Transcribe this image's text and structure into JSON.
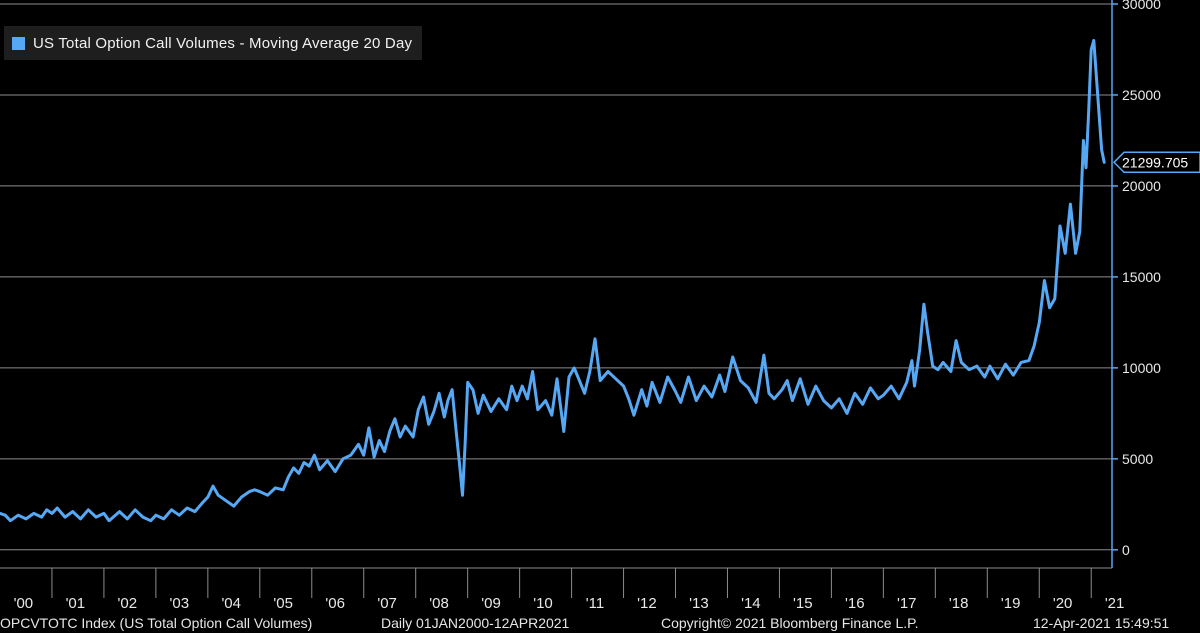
{
  "chart_data": {
    "type": "line",
    "series_label": "US Total Option Call Volumes - Moving Average 20 Day",
    "series_color": "#56a8f5",
    "last_value_label": "21299.705",
    "y_ticks": [
      "0",
      "5000",
      "10000",
      "15000",
      "20000",
      "25000",
      "30000"
    ],
    "ylim": [
      -1000,
      30000
    ],
    "x_tick_labels": [
      "'00",
      "'01",
      "'02",
      "'03",
      "'04",
      "'05",
      "'06",
      "'07",
      "'08",
      "'09",
      "'10",
      "'11",
      "'12",
      "'13",
      "'14",
      "'15",
      "'16",
      "'17",
      "'18",
      "'19",
      "'20",
      "'21"
    ],
    "xlim": [
      2000.0,
      2021.4
    ],
    "grid": true,
    "points": [
      [
        2000.0,
        2000
      ],
      [
        2000.1,
        1900
      ],
      [
        2000.2,
        1600
      ],
      [
        2000.35,
        1900
      ],
      [
        2000.5,
        1700
      ],
      [
        2000.65,
        2000
      ],
      [
        2000.8,
        1800
      ],
      [
        2000.9,
        2200
      ],
      [
        2001.0,
        2000
      ],
      [
        2001.1,
        2300
      ],
      [
        2001.25,
        1800
      ],
      [
        2001.4,
        2100
      ],
      [
        2001.55,
        1700
      ],
      [
        2001.7,
        2200
      ],
      [
        2001.85,
        1800
      ],
      [
        2002.0,
        2000
      ],
      [
        2002.1,
        1600
      ],
      [
        2002.3,
        2100
      ],
      [
        2002.45,
        1700
      ],
      [
        2002.6,
        2200
      ],
      [
        2002.75,
        1800
      ],
      [
        2002.9,
        1600
      ],
      [
        2003.0,
        1900
      ],
      [
        2003.15,
        1700
      ],
      [
        2003.3,
        2200
      ],
      [
        2003.45,
        1900
      ],
      [
        2003.6,
        2300
      ],
      [
        2003.75,
        2100
      ],
      [
        2003.9,
        2600
      ],
      [
        2004.0,
        2900
      ],
      [
        2004.1,
        3500
      ],
      [
        2004.2,
        3000
      ],
      [
        2004.35,
        2700
      ],
      [
        2004.5,
        2400
      ],
      [
        2004.65,
        2900
      ],
      [
        2004.8,
        3200
      ],
      [
        2004.9,
        3300
      ],
      [
        2005.0,
        3200
      ],
      [
        2005.15,
        3000
      ],
      [
        2005.3,
        3400
      ],
      [
        2005.45,
        3300
      ],
      [
        2005.55,
        4000
      ],
      [
        2005.65,
        4500
      ],
      [
        2005.75,
        4200
      ],
      [
        2005.85,
        4800
      ],
      [
        2005.95,
        4600
      ],
      [
        2006.05,
        5200
      ],
      [
        2006.15,
        4400
      ],
      [
        2006.3,
        4900
      ],
      [
        2006.45,
        4300
      ],
      [
        2006.6,
        5000
      ],
      [
        2006.75,
        5200
      ],
      [
        2006.9,
        5800
      ],
      [
        2007.0,
        5200
      ],
      [
        2007.1,
        6700
      ],
      [
        2007.2,
        5100
      ],
      [
        2007.3,
        6000
      ],
      [
        2007.4,
        5400
      ],
      [
        2007.5,
        6500
      ],
      [
        2007.6,
        7200
      ],
      [
        2007.7,
        6200
      ],
      [
        2007.8,
        6800
      ],
      [
        2007.95,
        6200
      ],
      [
        2008.05,
        7700
      ],
      [
        2008.15,
        8400
      ],
      [
        2008.25,
        6900
      ],
      [
        2008.35,
        7600
      ],
      [
        2008.45,
        8600
      ],
      [
        2008.55,
        7300
      ],
      [
        2008.62,
        8200
      ],
      [
        2008.7,
        8800
      ],
      [
        2008.78,
        6500
      ],
      [
        2008.85,
        4500
      ],
      [
        2008.9,
        3000
      ],
      [
        2008.95,
        5800
      ],
      [
        2009.0,
        9200
      ],
      [
        2009.1,
        8800
      ],
      [
        2009.2,
        7500
      ],
      [
        2009.3,
        8500
      ],
      [
        2009.45,
        7600
      ],
      [
        2009.6,
        8300
      ],
      [
        2009.75,
        7700
      ],
      [
        2009.85,
        9000
      ],
      [
        2009.95,
        8200
      ],
      [
        2010.05,
        9000
      ],
      [
        2010.15,
        8300
      ],
      [
        2010.25,
        9800
      ],
      [
        2010.35,
        7700
      ],
      [
        2010.5,
        8200
      ],
      [
        2010.62,
        7400
      ],
      [
        2010.72,
        9400
      ],
      [
        2010.85,
        6500
      ],
      [
        2010.95,
        9500
      ],
      [
        2011.05,
        10000
      ],
      [
        2011.15,
        9300
      ],
      [
        2011.25,
        8600
      ],
      [
        2011.35,
        9800
      ],
      [
        2011.45,
        11600
      ],
      [
        2011.55,
        9300
      ],
      [
        2011.7,
        9800
      ],
      [
        2011.85,
        9400
      ],
      [
        2012.0,
        9000
      ],
      [
        2012.1,
        8300
      ],
      [
        2012.2,
        7400
      ],
      [
        2012.35,
        8800
      ],
      [
        2012.45,
        7900
      ],
      [
        2012.55,
        9200
      ],
      [
        2012.7,
        8100
      ],
      [
        2012.85,
        9500
      ],
      [
        2013.0,
        8700
      ],
      [
        2013.1,
        8100
      ],
      [
        2013.25,
        9500
      ],
      [
        2013.4,
        8200
      ],
      [
        2013.55,
        9000
      ],
      [
        2013.7,
        8400
      ],
      [
        2013.85,
        9600
      ],
      [
        2013.95,
        8700
      ],
      [
        2014.1,
        10600
      ],
      [
        2014.25,
        9300
      ],
      [
        2014.4,
        8900
      ],
      [
        2014.55,
        8100
      ],
      [
        2014.7,
        10700
      ],
      [
        2014.8,
        8600
      ],
      [
        2014.9,
        8300
      ],
      [
        2015.05,
        8800
      ],
      [
        2015.15,
        9300
      ],
      [
        2015.25,
        8200
      ],
      [
        2015.4,
        9400
      ],
      [
        2015.55,
        8000
      ],
      [
        2015.7,
        9000
      ],
      [
        2015.85,
        8200
      ],
      [
        2016.0,
        7800
      ],
      [
        2016.15,
        8300
      ],
      [
        2016.3,
        7500
      ],
      [
        2016.45,
        8600
      ],
      [
        2016.6,
        8000
      ],
      [
        2016.75,
        8900
      ],
      [
        2016.9,
        8300
      ],
      [
        2017.0,
        8500
      ],
      [
        2017.15,
        9000
      ],
      [
        2017.3,
        8300
      ],
      [
        2017.45,
        9200
      ],
      [
        2017.55,
        10400
      ],
      [
        2017.6,
        9000
      ],
      [
        2017.7,
        11000
      ],
      [
        2017.78,
        13500
      ],
      [
        2017.85,
        12000
      ],
      [
        2017.95,
        10100
      ],
      [
        2018.05,
        9900
      ],
      [
        2018.15,
        10300
      ],
      [
        2018.3,
        9800
      ],
      [
        2018.4,
        11500
      ],
      [
        2018.5,
        10300
      ],
      [
        2018.65,
        9900
      ],
      [
        2018.8,
        10100
      ],
      [
        2018.95,
        9500
      ],
      [
        2019.05,
        10100
      ],
      [
        2019.2,
        9400
      ],
      [
        2019.35,
        10200
      ],
      [
        2019.5,
        9600
      ],
      [
        2019.65,
        10300
      ],
      [
        2019.8,
        10400
      ],
      [
        2019.9,
        11200
      ],
      [
        2020.0,
        12500
      ],
      [
        2020.1,
        14800
      ],
      [
        2020.2,
        13300
      ],
      [
        2020.3,
        13800
      ],
      [
        2020.4,
        17800
      ],
      [
        2020.5,
        16300
      ],
      [
        2020.6,
        19000
      ],
      [
        2020.7,
        16300
      ],
      [
        2020.78,
        17500
      ],
      [
        2020.85,
        22500
      ],
      [
        2020.9,
        21000
      ],
      [
        2020.95,
        24000
      ],
      [
        2021.0,
        27500
      ],
      [
        2021.05,
        28000
      ],
      [
        2021.1,
        26000
      ],
      [
        2021.15,
        24000
      ],
      [
        2021.2,
        22000
      ],
      [
        2021.25,
        21300
      ]
    ]
  },
  "footer": {
    "index_text": "OPCVTOTC Index (US Total Option Call Volumes)",
    "range_text": "Daily 01JAN2000-12APR2021",
    "copyright_text": "Copyright© 2021 Bloomberg Finance L.P.",
    "timestamp_text": "12-Apr-2021 15:49:51"
  }
}
